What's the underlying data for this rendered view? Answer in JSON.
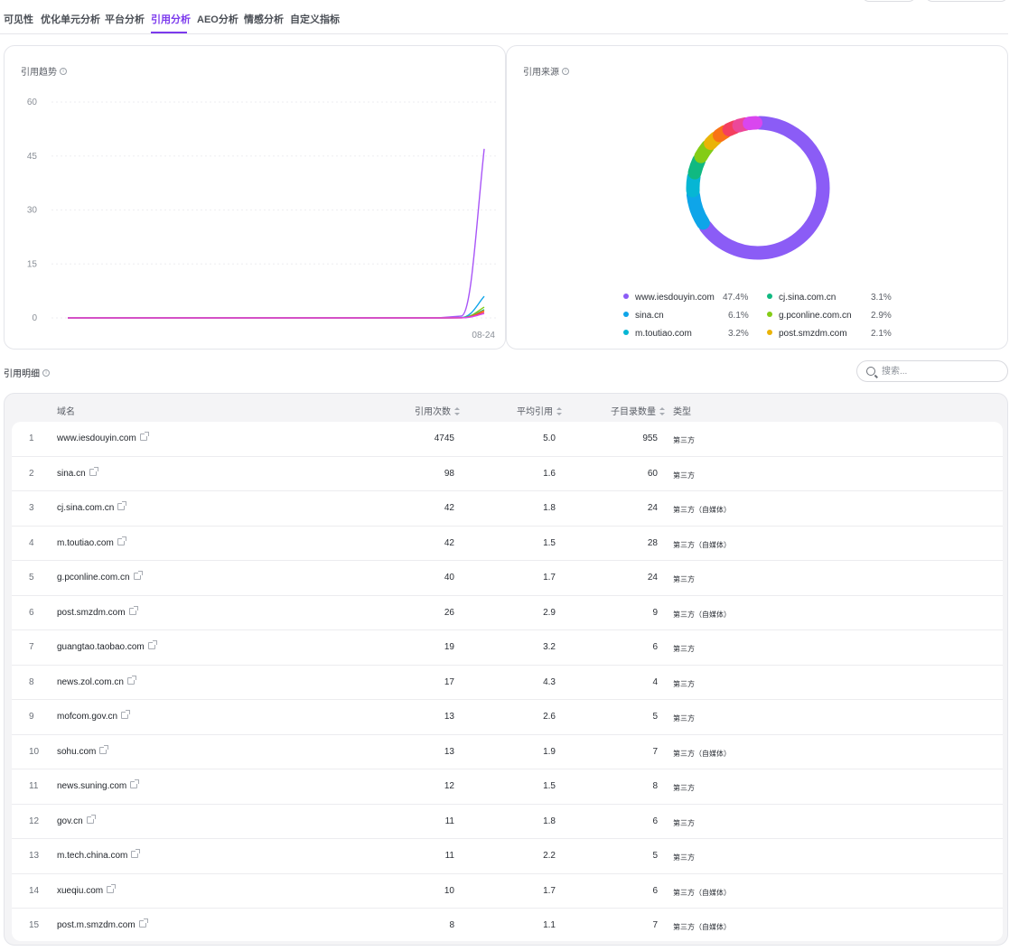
{
  "tabs": [
    {
      "label": "可见性",
      "active": false
    },
    {
      "label": "优化单元分析",
      "active": false
    },
    {
      "label": "平台分析",
      "active": false
    },
    {
      "label": "引用分析",
      "active": true
    },
    {
      "label": "AEO分析",
      "active": false
    },
    {
      "label": "情感分析",
      "active": false
    },
    {
      "label": "自定义指标",
      "active": false
    }
  ],
  "trend_card": {
    "title": "引用趋势"
  },
  "source_card": {
    "title": "引用来源"
  },
  "chart_data": [
    {
      "type": "line",
      "title": "引用趋势",
      "x_label_visible": "08-24",
      "yticks": [
        0,
        15,
        30,
        45,
        60
      ],
      "ylim": [
        0,
        60
      ],
      "grid": true,
      "series": [
        {
          "color": "#a855f7",
          "values": [
            0,
            0,
            0,
            0,
            0,
            0,
            0,
            0,
            0,
            0,
            0,
            0,
            0,
            0,
            0,
            0,
            0,
            0.5,
            47
          ]
        },
        {
          "color": "#0ea5e9",
          "values": [
            0,
            0,
            0,
            0,
            0,
            0,
            0,
            0,
            0,
            0,
            0,
            0,
            0,
            0,
            0,
            0,
            0,
            0.1,
            6
          ]
        },
        {
          "color": "#84cc16",
          "values": [
            0,
            0,
            0,
            0,
            0,
            0,
            0,
            0,
            0,
            0,
            0,
            0,
            0,
            0,
            0,
            0,
            0,
            0.05,
            3
          ]
        },
        {
          "color": "#10b981",
          "values": [
            0,
            0,
            0,
            0,
            0,
            0,
            0,
            0,
            0,
            0,
            0,
            0,
            0,
            0,
            0,
            0,
            0,
            0.05,
            2.3
          ]
        },
        {
          "color": "#f97316",
          "values": [
            0,
            0,
            0,
            0,
            0,
            0,
            0,
            0,
            0,
            0,
            0,
            0,
            0,
            0,
            0,
            0,
            0,
            0.03,
            2
          ]
        },
        {
          "color": "#ef4444",
          "values": [
            0,
            0,
            0,
            0,
            0,
            0,
            0,
            0,
            0,
            0,
            0,
            0,
            0,
            0,
            0,
            0,
            0,
            0.02,
            1.6
          ]
        },
        {
          "color": "#d946ef",
          "values": [
            0,
            0,
            0,
            0,
            0,
            0,
            0,
            0,
            0,
            0,
            0,
            0,
            0,
            0,
            0,
            0,
            0,
            0.02,
            1.2
          ]
        }
      ]
    },
    {
      "type": "pie",
      "title": "引用来源",
      "donut": true,
      "slices": [
        {
          "name": "www.iesdouyin.com",
          "value": 47.4,
          "pct": "47.4%",
          "color": "#8b5cf6"
        },
        {
          "name": "sina.cn",
          "value": 6.1,
          "pct": "6.1%",
          "color": "#0ea5e9"
        },
        {
          "name": "m.toutiao.com",
          "value": 3.2,
          "pct": "3.2%",
          "color": "#06b6d4"
        },
        {
          "name": "cj.sina.com.cn",
          "value": 3.1,
          "pct": "3.1%",
          "color": "#10b981"
        },
        {
          "name": "g.pconline.com.cn",
          "value": 2.9,
          "pct": "2.9%",
          "color": "#84cc16"
        },
        {
          "name": "post.smzdm.com",
          "value": 2.1,
          "pct": "2.1%",
          "color": "#eab308"
        },
        {
          "name": "",
          "value": 2.0,
          "color": "#f97316"
        },
        {
          "name": "",
          "value": 1.9,
          "color": "#f43f5e"
        },
        {
          "name": "",
          "value": 1.9,
          "color": "#ec4899"
        },
        {
          "name": "",
          "value": 1.9,
          "color": "#d946ef"
        }
      ]
    }
  ],
  "detail": {
    "title": "引用明细",
    "search_placeholder": "搜索..."
  },
  "table": {
    "headers": {
      "domain": "域名",
      "count": "引用次数",
      "avg": "平均引用",
      "subdirs": "子目录数量",
      "type": "类型"
    },
    "rows": [
      {
        "idx": "1",
        "domain": "www.iesdouyin.com",
        "count": "4745",
        "avg": "5.0",
        "subdirs": "955",
        "type": "第三方"
      },
      {
        "idx": "2",
        "domain": "sina.cn",
        "count": "98",
        "avg": "1.6",
        "subdirs": "60",
        "type": "第三方"
      },
      {
        "idx": "3",
        "domain": "cj.sina.com.cn",
        "count": "42",
        "avg": "1.8",
        "subdirs": "24",
        "type": "第三方（自媒体）"
      },
      {
        "idx": "4",
        "domain": "m.toutiao.com",
        "count": "42",
        "avg": "1.5",
        "subdirs": "28",
        "type": "第三方（自媒体）"
      },
      {
        "idx": "5",
        "domain": "g.pconline.com.cn",
        "count": "40",
        "avg": "1.7",
        "subdirs": "24",
        "type": "第三方"
      },
      {
        "idx": "6",
        "domain": "post.smzdm.com",
        "count": "26",
        "avg": "2.9",
        "subdirs": "9",
        "type": "第三方（自媒体）"
      },
      {
        "idx": "7",
        "domain": "guangtao.taobao.com",
        "count": "19",
        "avg": "3.2",
        "subdirs": "6",
        "type": "第三方"
      },
      {
        "idx": "8",
        "domain": "news.zol.com.cn",
        "count": "17",
        "avg": "4.3",
        "subdirs": "4",
        "type": "第三方"
      },
      {
        "idx": "9",
        "domain": "mofcom.gov.cn",
        "count": "13",
        "avg": "2.6",
        "subdirs": "5",
        "type": "第三方"
      },
      {
        "idx": "10",
        "domain": "sohu.com",
        "count": "13",
        "avg": "1.9",
        "subdirs": "7",
        "type": "第三方（自媒体）"
      },
      {
        "idx": "11",
        "domain": "news.suning.com",
        "count": "12",
        "avg": "1.5",
        "subdirs": "8",
        "type": "第三方"
      },
      {
        "idx": "12",
        "domain": "gov.cn",
        "count": "11",
        "avg": "1.8",
        "subdirs": "6",
        "type": "第三方"
      },
      {
        "idx": "13",
        "domain": "m.tech.china.com",
        "count": "11",
        "avg": "2.2",
        "subdirs": "5",
        "type": "第三方"
      },
      {
        "idx": "14",
        "domain": "xueqiu.com",
        "count": "10",
        "avg": "1.7",
        "subdirs": "6",
        "type": "第三方（自媒体）"
      },
      {
        "idx": "15",
        "domain": "post.m.smzdm.com",
        "count": "8",
        "avg": "1.1",
        "subdirs": "7",
        "type": "第三方（自媒体）"
      }
    ]
  }
}
